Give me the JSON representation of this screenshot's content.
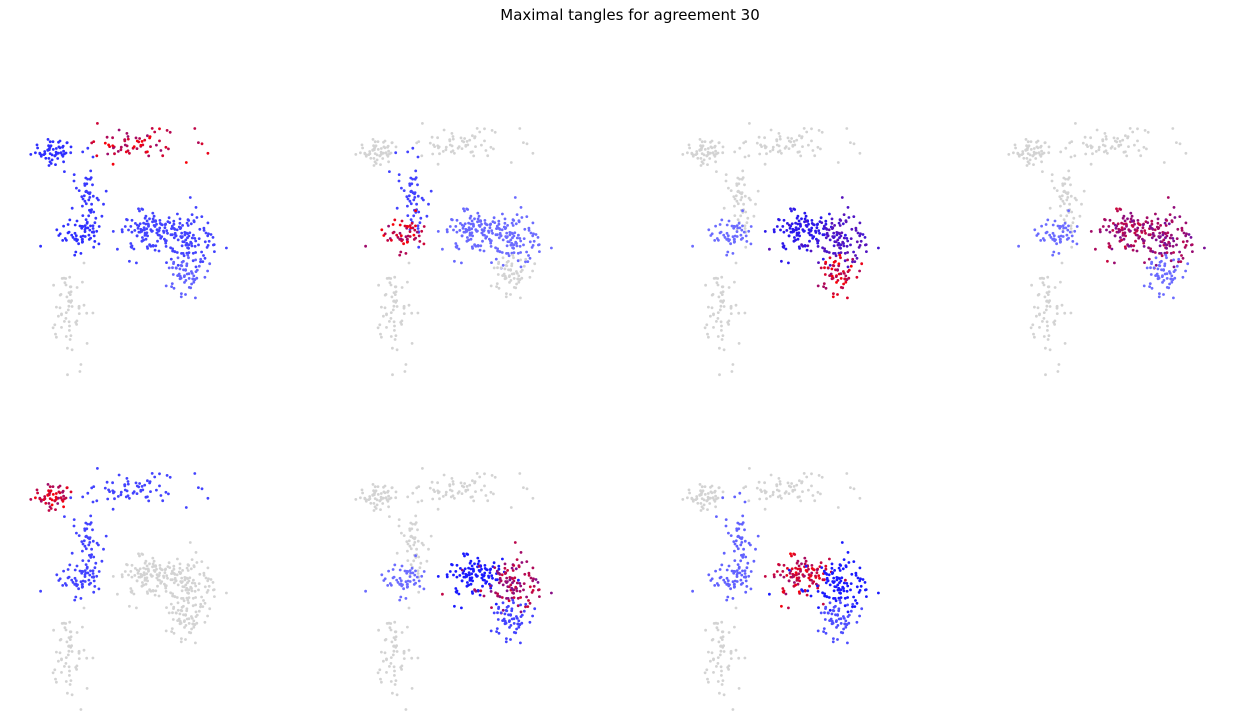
{
  "title": "Maximal tangles for agreement 30",
  "colors": {
    "background": "#d3d3d3",
    "low": "#1a1aff",
    "high": "#ff0000",
    "white": "#ffffff"
  },
  "chart_data": {
    "type": "scatter",
    "title": "Maximal tangles for agreement 30",
    "grid": false,
    "axes_visible": false,
    "xlim": [
      -0.5,
      10.5
    ],
    "ylim": [
      -0.5,
      11
    ],
    "layout": "2 rows x 4 columns (last cell empty)",
    "clusters": [
      {
        "id": "A",
        "center": [
          0.9,
          8.6
        ],
        "n": 55,
        "spread": [
          0.45,
          0.25
        ]
      },
      {
        "id": "B",
        "center": [
          4.6,
          8.9
        ],
        "n": 65,
        "spread": [
          1.1,
          0.35
        ]
      },
      {
        "id": "C",
        "center": [
          2.5,
          6.7
        ],
        "n": 55,
        "spread": [
          0.3,
          0.9
        ]
      },
      {
        "id": "D",
        "center": [
          2.1,
          5.1
        ],
        "n": 55,
        "spread": [
          0.5,
          0.35
        ]
      },
      {
        "id": "E",
        "center": [
          5.0,
          5.2
        ],
        "n": 110,
        "spread": [
          0.65,
          0.45
        ]
      },
      {
        "id": "F",
        "center": [
          6.8,
          4.9
        ],
        "n": 110,
        "spread": [
          0.75,
          0.55
        ]
      },
      {
        "id": "G",
        "center": [
          6.7,
          3.3
        ],
        "n": 60,
        "spread": [
          0.45,
          0.45
        ]
      },
      {
        "id": "H",
        "center": [
          1.6,
          2.0
        ],
        "n": 60,
        "spread": [
          0.4,
          1.0
        ]
      }
    ],
    "panels": [
      {
        "id": 1,
        "weights": {
          "A": 0.4,
          "B": 1.0,
          "C": 0.35,
          "D": 0.4,
          "E": 0.3,
          "F": 0.3,
          "G": 0.15,
          "H": 0.0
        }
      },
      {
        "id": 2,
        "weights": {
          "A": 0.0,
          "B": 0.0,
          "C": 0.3,
          "D": 1.0,
          "E": 0.12,
          "F": 0.1,
          "G": 0.0,
          "H": 0.0
        }
      },
      {
        "id": 3,
        "weights": {
          "A": 0.0,
          "B": 0.0,
          "C": 0.0,
          "D": 0.1,
          "E": 0.55,
          "F": 0.65,
          "G": 1.0,
          "H": 0.0
        }
      },
      {
        "id": 4,
        "weights": {
          "A": 0.0,
          "B": 0.0,
          "C": 0.0,
          "D": 0.1,
          "E": 0.9,
          "F": 0.85,
          "G": 0.1,
          "H": 0.0
        }
      },
      {
        "id": 5,
        "weights": {
          "A": 1.0,
          "B": 0.3,
          "C": 0.3,
          "D": 0.3,
          "E": 0.0,
          "F": 0.0,
          "G": 0.0,
          "H": 0.0
        }
      },
      {
        "id": 6,
        "weights": {
          "A": 0.0,
          "B": 0.0,
          "C": 0.0,
          "D": 0.1,
          "E": 0.5,
          "F": 0.9,
          "G": 0.3,
          "H": 0.0
        }
      },
      {
        "id": 7,
        "weights": {
          "A": 0.0,
          "B": 0.0,
          "C": 0.15,
          "D": 0.15,
          "E": 1.0,
          "F": 0.5,
          "G": 0.25,
          "H": 0.0
        }
      }
    ]
  }
}
